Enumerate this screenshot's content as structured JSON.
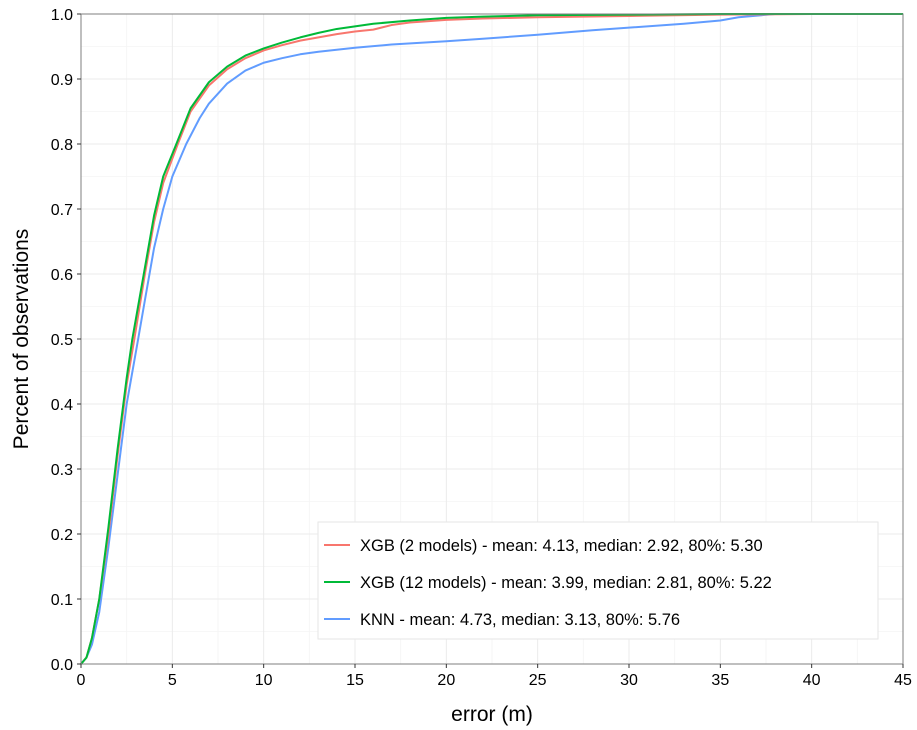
{
  "chart_data": {
    "type": "line",
    "title": "",
    "xlabel": "error (m)",
    "ylabel": "Percent of observations",
    "xlim": [
      0,
      45
    ],
    "ylim": [
      0,
      1
    ],
    "x_ticks": [
      "0",
      "5",
      "10",
      "15",
      "20",
      "25",
      "30",
      "35",
      "40",
      "45"
    ],
    "y_ticks": [
      "0.0",
      "0.1",
      "0.2",
      "0.3",
      "0.4",
      "0.5",
      "0.6",
      "0.7",
      "0.8",
      "0.9",
      "1.0"
    ],
    "grid": true,
    "legend_position": "bottom-right",
    "series": [
      {
        "name": "XGB (2 models) - mean: 4.13, median: 2.92, 80%: 5.30",
        "color": "#F8766D",
        "points": [
          [
            0,
            0
          ],
          [
            0.3,
            0.01
          ],
          [
            0.6,
            0.04
          ],
          [
            1,
            0.1
          ],
          [
            1.5,
            0.2
          ],
          [
            2,
            0.32
          ],
          [
            2.5,
            0.43
          ],
          [
            2.92,
            0.5
          ],
          [
            3.5,
            0.6
          ],
          [
            4,
            0.68
          ],
          [
            4.5,
            0.74
          ],
          [
            5.3,
            0.8
          ],
          [
            6,
            0.85
          ],
          [
            7,
            0.89
          ],
          [
            8,
            0.915
          ],
          [
            9,
            0.932
          ],
          [
            10,
            0.944
          ],
          [
            11,
            0.952
          ],
          [
            12,
            0.959
          ],
          [
            13,
            0.964
          ],
          [
            14,
            0.969
          ],
          [
            15,
            0.973
          ],
          [
            16,
            0.976
          ],
          [
            17,
            0.983
          ],
          [
            18,
            0.987
          ],
          [
            20,
            0.991
          ],
          [
            22,
            0.993
          ],
          [
            25,
            0.995
          ],
          [
            30,
            0.997
          ],
          [
            35,
            0.999
          ],
          [
            40,
            1
          ],
          [
            45,
            1
          ]
        ]
      },
      {
        "name": "XGB (12 models) - mean: 3.99, median: 2.81, 80%: 5.22",
        "color": "#00BA38",
        "points": [
          [
            0,
            0
          ],
          [
            0.3,
            0.01
          ],
          [
            0.6,
            0.04
          ],
          [
            1,
            0.1
          ],
          [
            1.5,
            0.21
          ],
          [
            2,
            0.33
          ],
          [
            2.5,
            0.44
          ],
          [
            2.81,
            0.5
          ],
          [
            3.5,
            0.61
          ],
          [
            4,
            0.69
          ],
          [
            4.5,
            0.75
          ],
          [
            5.22,
            0.8
          ],
          [
            6,
            0.855
          ],
          [
            7,
            0.895
          ],
          [
            8,
            0.919
          ],
          [
            9,
            0.936
          ],
          [
            10,
            0.947
          ],
          [
            11,
            0.956
          ],
          [
            12,
            0.964
          ],
          [
            13,
            0.971
          ],
          [
            14,
            0.977
          ],
          [
            15,
            0.981
          ],
          [
            16,
            0.985
          ],
          [
            18,
            0.99
          ],
          [
            20,
            0.994
          ],
          [
            22,
            0.996
          ],
          [
            25,
            0.998
          ],
          [
            30,
            0.999
          ],
          [
            35,
            1
          ],
          [
            45,
            1
          ]
        ]
      },
      {
        "name": "KNN - mean: 4.73, median: 3.13, 80%: 5.76",
        "color": "#619CFF",
        "points": [
          [
            0,
            0
          ],
          [
            0.3,
            0.01
          ],
          [
            0.6,
            0.03
          ],
          [
            1,
            0.08
          ],
          [
            1.5,
            0.18
          ],
          [
            2,
            0.29
          ],
          [
            2.5,
            0.4
          ],
          [
            3.13,
            0.5
          ],
          [
            3.5,
            0.56
          ],
          [
            4,
            0.64
          ],
          [
            4.5,
            0.7
          ],
          [
            5,
            0.75
          ],
          [
            5.76,
            0.8
          ],
          [
            6.5,
            0.84
          ],
          [
            7,
            0.862
          ],
          [
            8,
            0.893
          ],
          [
            9,
            0.913
          ],
          [
            10,
            0.925
          ],
          [
            11,
            0.932
          ],
          [
            12,
            0.938
          ],
          [
            13,
            0.942
          ],
          [
            14,
            0.945
          ],
          [
            15,
            0.948
          ],
          [
            17,
            0.953
          ],
          [
            20,
            0.958
          ],
          [
            22,
            0.962
          ],
          [
            25,
            0.968
          ],
          [
            28,
            0.975
          ],
          [
            30,
            0.979
          ],
          [
            33,
            0.985
          ],
          [
            35,
            0.99
          ],
          [
            36,
            0.995
          ],
          [
            38,
            1
          ],
          [
            45,
            1
          ]
        ]
      }
    ]
  }
}
